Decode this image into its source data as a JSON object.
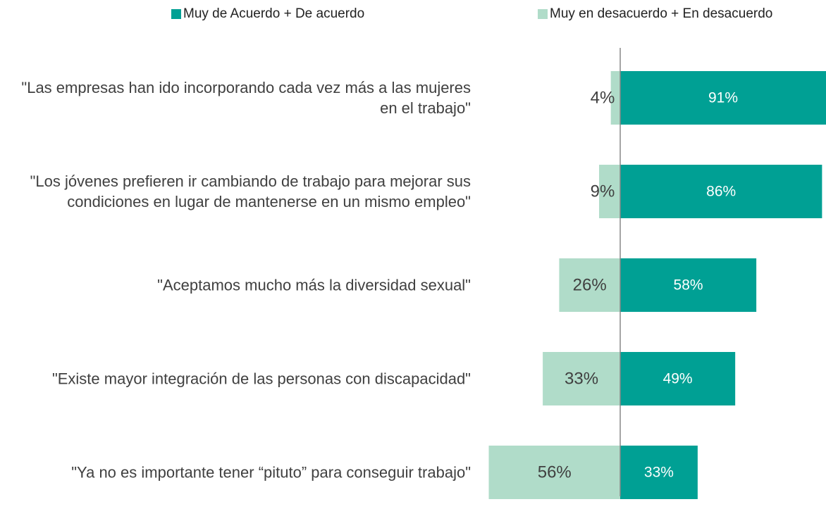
{
  "chart_data": {
    "type": "diverging_bar",
    "categories": [
      "\"Las empresas han ido incorporando cada vez más a las mujeres en el trabajo\"",
      "\"Los jóvenes prefieren ir cambiando de trabajo para mejorar sus condiciones en lugar de mantenerse en un mismo empleo\"",
      "\"Aceptamos mucho más la diversidad sexual\"",
      "\"Existe mayor integración de las personas con discapacidad\"",
      "\"Ya no es importante tener “pituto” para conseguir trabajo\""
    ],
    "series": [
      {
        "name": "Muy de Acuerdo + De acuerdo",
        "color": "#00a094",
        "values": [
          91,
          86,
          58,
          49,
          33
        ],
        "value_labels": [
          "91%",
          "86%",
          "58%",
          "49%",
          "33%"
        ]
      },
      {
        "name": "Muy en desacuerdo + En desacuerdo",
        "color": "#b0dcc9",
        "values": [
          4,
          9,
          26,
          33,
          56
        ],
        "value_labels": [
          "4%",
          "9%",
          "26%",
          "33%",
          "56%"
        ]
      }
    ]
  }
}
